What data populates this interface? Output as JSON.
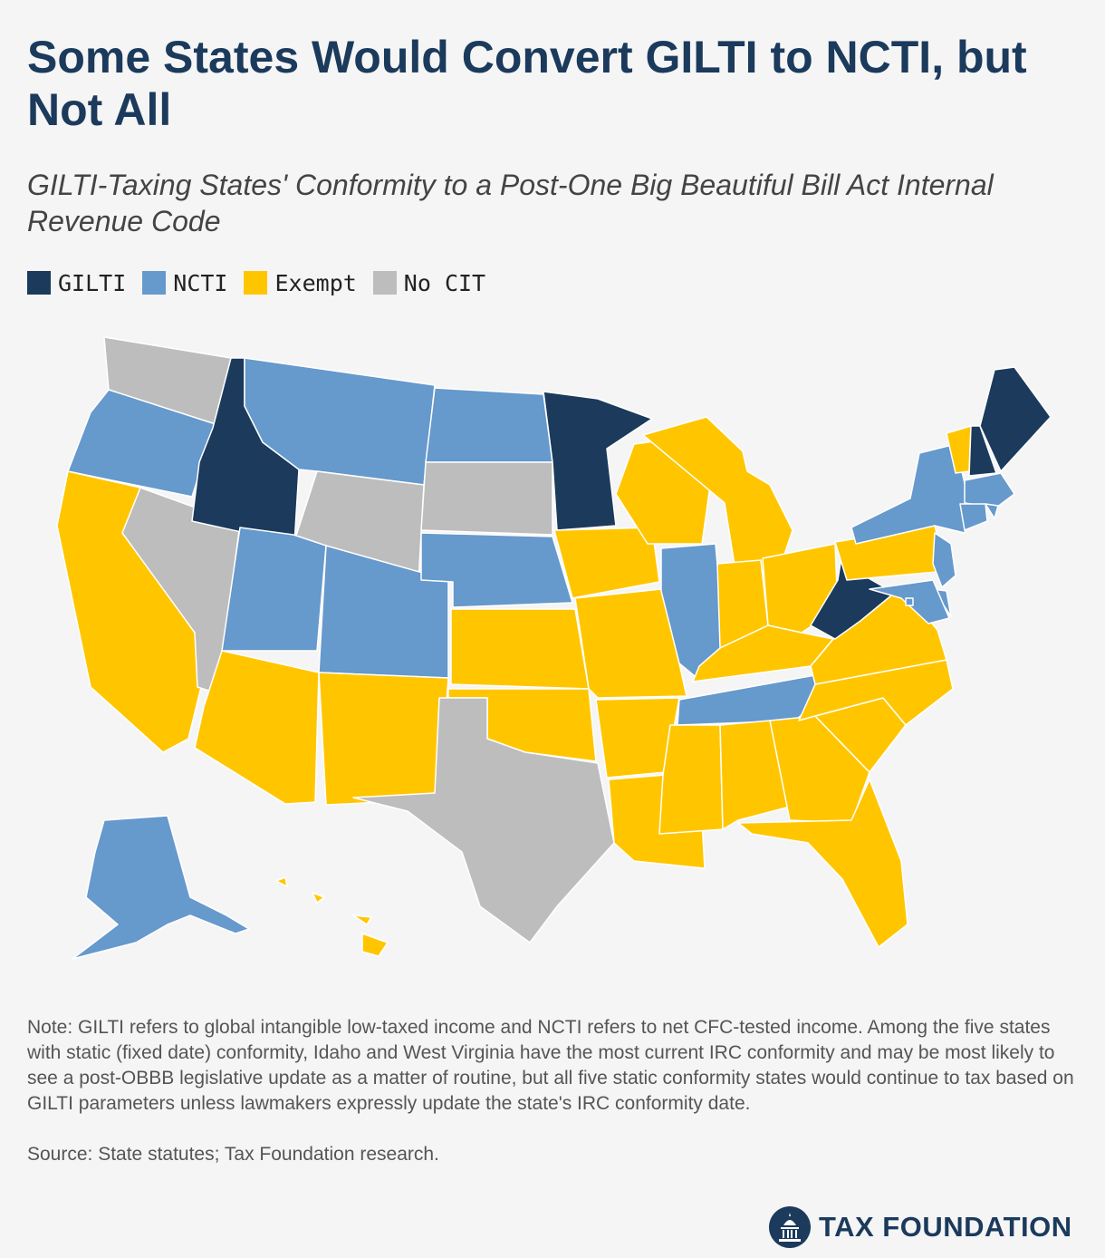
{
  "title": "Some States Would Convert GILTI to NCTI, but Not All",
  "subtitle": "GILTI-Taxing States' Conformity to a Post-One Big Beautiful Bill Act Internal Revenue Code",
  "legend": [
    {
      "label": "GILTI",
      "color": "#1b3a5c"
    },
    {
      "label": "NCTI",
      "color": "#6699cc"
    },
    {
      "label": "Exempt",
      "color": "#ffc600"
    },
    {
      "label": "No CIT",
      "color": "#bdbdbd"
    }
  ],
  "colors": {
    "GILTI": "#1b3a5c",
    "NCTI": "#6699cc",
    "Exempt": "#ffc600",
    "No CIT": "#bdbdbd",
    "background": "#f5f5f5"
  },
  "map_data": {
    "type": "choropleth",
    "region": "United States",
    "categories": [
      "GILTI",
      "NCTI",
      "Exempt",
      "No CIT"
    ],
    "states": {
      "WA": "No CIT",
      "OR": "NCTI",
      "CA": "Exempt",
      "NV": "No CIT",
      "ID": "GILTI",
      "MT": "NCTI",
      "WY": "No CIT",
      "UT": "NCTI",
      "CO": "NCTI",
      "AZ": "Exempt",
      "NM": "Exempt",
      "ND": "NCTI",
      "SD": "No CIT",
      "NE": "NCTI",
      "KS": "Exempt",
      "OK": "Exempt",
      "TX": "No CIT",
      "MN": "GILTI",
      "IA": "Exempt",
      "MO": "Exempt",
      "AR": "Exempt",
      "LA": "Exempt",
      "WI": "Exempt",
      "IL": "NCTI",
      "MI": "Exempt",
      "IN": "Exempt",
      "OH": "Exempt",
      "KY": "Exempt",
      "TN": "NCTI",
      "MS": "Exempt",
      "AL": "Exempt",
      "GA": "Exempt",
      "FL": "Exempt",
      "SC": "Exempt",
      "NC": "Exempt",
      "VA": "Exempt",
      "WV": "GILTI",
      "PA": "Exempt",
      "NY": "NCTI",
      "VT": "Exempt",
      "NH": "GILTI",
      "ME": "GILTI",
      "MA": "NCTI",
      "RI": "NCTI",
      "CT": "NCTI",
      "NJ": "NCTI",
      "DE": "NCTI",
      "MD": "NCTI",
      "DC": "NCTI",
      "AK": "NCTI",
      "HI": "Exempt"
    }
  },
  "note": "Note: GILTI refers to global intangible low-taxed income and NCTI refers to net CFC-tested income. Among the five states with static (fixed date) conformity, Idaho and West Virginia have the most current IRC conformity and may be most likely to see a post-OBBB legislative update as a matter of routine, but all five static conformity states would continue to tax based on GILTI parameters unless lawmakers expressly update the state's IRC conformity date.",
  "source": "Source: State statutes; Tax Foundation research.",
  "logo": {
    "text": "TAX FOUNDATION",
    "icon": "capitol-dome-icon"
  }
}
